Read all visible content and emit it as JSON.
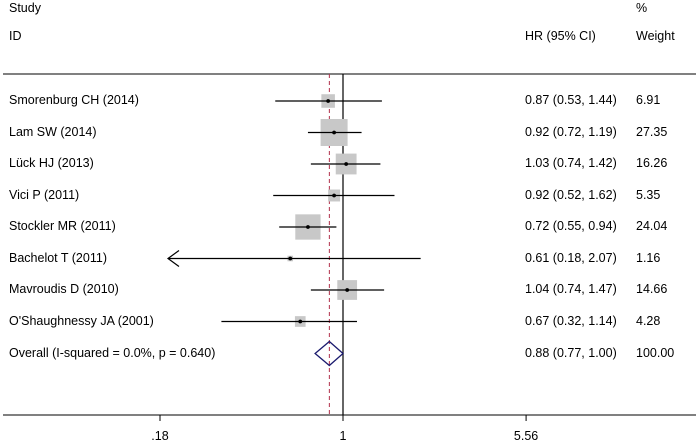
{
  "header": {
    "study_line1": "Study",
    "study_line2": "ID",
    "hr_label": "HR (95% CI)",
    "weight_line1": "%",
    "weight_line2": "Weight"
  },
  "chart_data": {
    "type": "forest",
    "scale": "log",
    "null_value": 1,
    "overall_value": 0.88,
    "xlim": [
      0.18,
      5.56
    ],
    "xticks": [
      {
        "value": 0.18,
        "label": ".18"
      },
      {
        "value": 1,
        "label": "1"
      },
      {
        "value": 5.56,
        "label": "5.56"
      }
    ],
    "studies": [
      {
        "name": "Smorenburg CH (2014)",
        "hr": 0.87,
        "lo": 0.53,
        "hi": 1.44,
        "ci_text": "0.87 (0.53, 1.44)",
        "weight": 6.91,
        "weight_text": "6.91"
      },
      {
        "name": "Lam SW  (2014)",
        "hr": 0.92,
        "lo": 0.72,
        "hi": 1.19,
        "ci_text": "0.92 (0.72, 1.19)",
        "weight": 27.35,
        "weight_text": "27.35"
      },
      {
        "name": "Lück HJ (2013)",
        "hr": 1.03,
        "lo": 0.74,
        "hi": 1.42,
        "ci_text": "1.03 (0.74, 1.42)",
        "weight": 16.26,
        "weight_text": "16.26"
      },
      {
        "name": "Vici P (2011)",
        "hr": 0.92,
        "lo": 0.52,
        "hi": 1.62,
        "ci_text": "0.92 (0.52, 1.62)",
        "weight": 5.35,
        "weight_text": "5.35"
      },
      {
        "name": "Stockler MR (2011)",
        "hr": 0.72,
        "lo": 0.55,
        "hi": 0.94,
        "ci_text": "0.72 (0.55, 0.94)",
        "weight": 24.04,
        "weight_text": "24.04"
      },
      {
        "name": "Bachelot T (2011)",
        "hr": 0.61,
        "lo": 0.18,
        "hi": 2.07,
        "ci_text": "0.61 (0.18, 2.07)",
        "weight": 1.16,
        "weight_text": "1.16",
        "lo_truncated": true
      },
      {
        "name": "Mavroudis D (2010)",
        "hr": 1.04,
        "lo": 0.74,
        "hi": 1.47,
        "ci_text": "1.04 (0.74, 1.47)",
        "weight": 14.66,
        "weight_text": "14.66"
      },
      {
        "name": "O'Shaughnessy JA (2001)",
        "hr": 0.67,
        "lo": 0.32,
        "hi": 1.14,
        "ci_text": "0.67 (0.32, 1.14)",
        "weight": 4.28,
        "weight_text": "4.28"
      }
    ],
    "overall": {
      "name": "Overall  (I-squared = 0.0%, p = 0.640)",
      "hr": 0.88,
      "lo": 0.77,
      "hi": 1.0,
      "ci_text": "0.88 (0.77, 1.00)",
      "weight_text": "100.00"
    }
  },
  "colors": {
    "box": "#c8c8c8",
    "diamond": "#1a1a6e",
    "ref_line": "#b2304a",
    "line": "#000000"
  }
}
